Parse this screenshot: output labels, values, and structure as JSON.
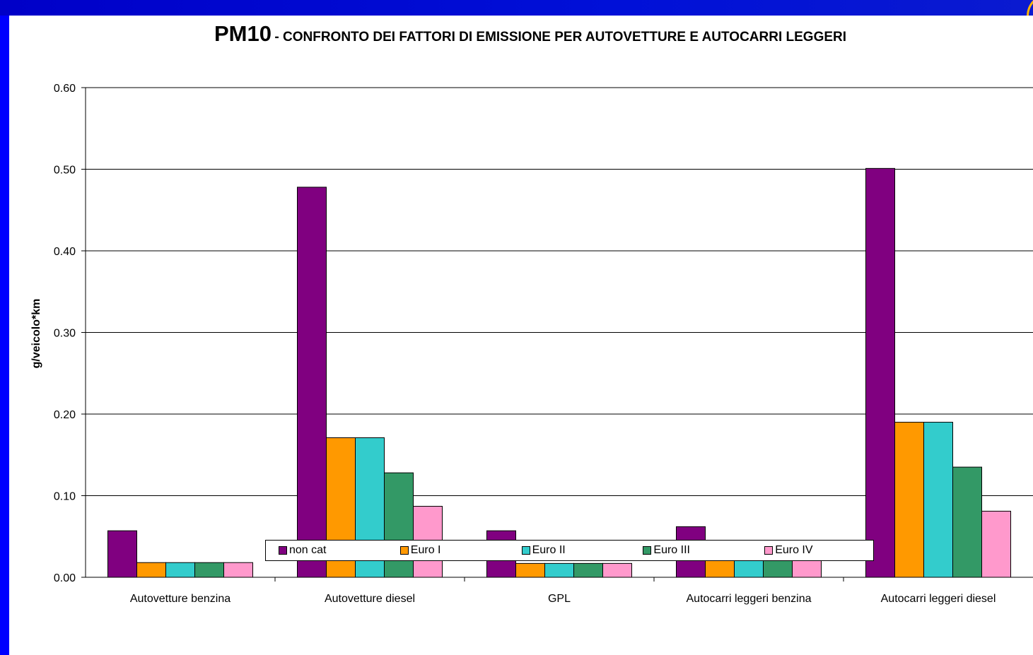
{
  "chart_data": {
    "type": "bar",
    "title": "PM10",
    "subtitle": "- CONFRONTO DEI FATTORI DI EMISSIONE PER AUTOVETTURE E AUTOCARRI LEGGERI",
    "xlabel": "",
    "ylabel": "g/veicolo*km",
    "ylim": [
      0,
      0.6
    ],
    "yticks": [
      "0.00",
      "0.10",
      "0.20",
      "0.30",
      "0.40",
      "0.50",
      "0.60"
    ],
    "grid": true,
    "legend_position": "bottom",
    "categories": [
      "Autovetture benzina",
      "Autovetture diesel",
      "GPL",
      "Autocarri leggeri benzina",
      "Autocarri leggeri diesel"
    ],
    "series": [
      {
        "name": "non cat",
        "color": "#800080",
        "values": [
          0.057,
          0.478,
          0.057,
          0.062,
          0.501
        ]
      },
      {
        "name": "Euro I",
        "color": "#ff9900",
        "values": [
          0.018,
          0.171,
          0.017,
          0.022,
          0.19
        ]
      },
      {
        "name": "Euro II",
        "color": "#33cccc",
        "values": [
          0.018,
          0.171,
          0.017,
          0.022,
          0.19
        ]
      },
      {
        "name": "Euro III",
        "color": "#339966",
        "values": [
          0.018,
          0.128,
          0.017,
          0.022,
          0.135
        ]
      },
      {
        "name": "Euro IV",
        "color": "#ff99cc",
        "values": [
          0.018,
          0.087,
          0.017,
          0.022,
          0.081
        ]
      }
    ]
  }
}
